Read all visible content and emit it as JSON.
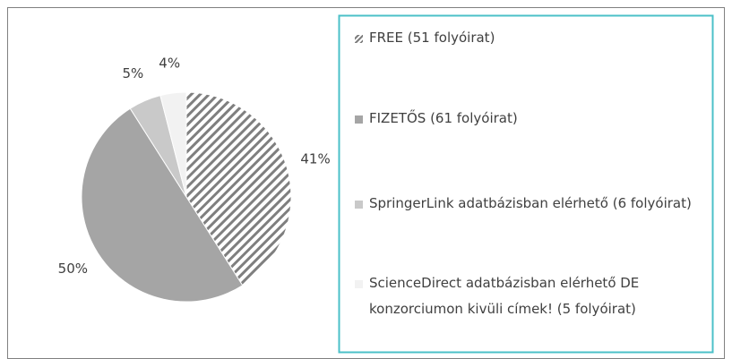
{
  "chart_data": {
    "type": "pie",
    "categories": [
      "FREE (51 folyóirat)",
      "FIZETŐS (61 folyóirat)",
      "SpringerLink adatbázisban elérhető (6 folyóirat)",
      "ScienceDirect adatbázisban elérhető DE konzorciumon kivüli címek! (5 folyóirat)"
    ],
    "values": [
      41,
      50,
      5,
      4
    ],
    "value_labels": [
      "41%",
      "50%",
      "5%",
      "4%"
    ],
    "colors": [
      "#7f7f7f",
      "#a5a5a5",
      "#c9c9c9",
      "#f2f2f2"
    ],
    "hatched": [
      true,
      false,
      false,
      false
    ]
  }
}
